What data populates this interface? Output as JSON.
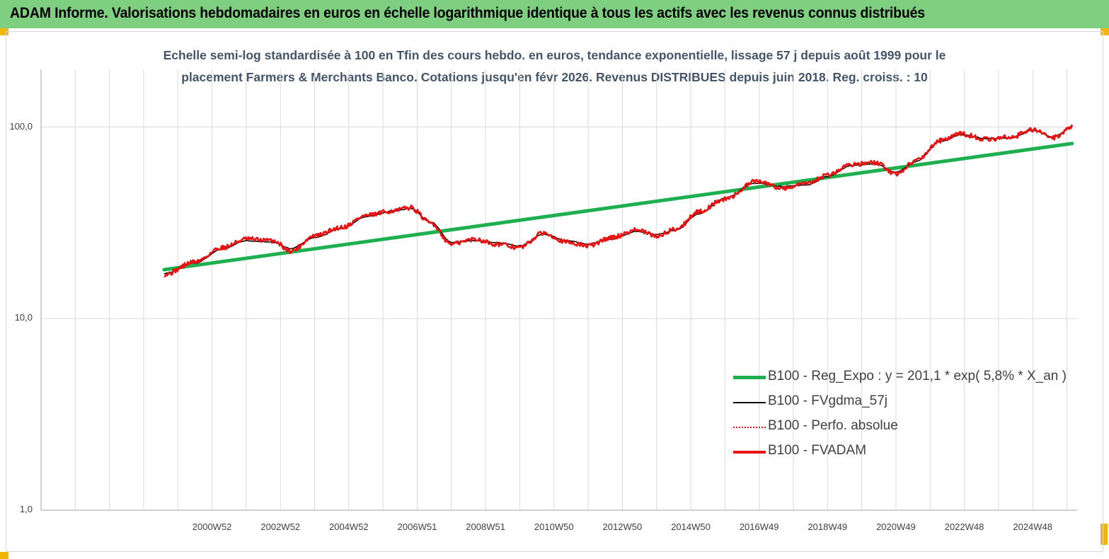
{
  "header": {
    "title": "ADAM Informe. Valorisations hebdomadaires en euros en échelle logarithmique identique à tous les actifs avec les revenus connus distribués",
    "bg_color": "#7fcf80"
  },
  "chart_data": {
    "type": "line",
    "title_line1": "Echelle semi-log standardisée à 100 en Tfin des cours hebdo. en euros, tendance exponentielle, lissage 57 j depuis août 1999 pour le",
    "title_line2": "placement Farmers & Merchants Banco. Cotations jusqu'en févr 2026. Revenus DISTRIBUES depuis juin 2018. Reg. croiss. : 10",
    "y_scale": "log",
    "ylim": [
      1,
      200
    ],
    "y_ticks": [
      "1,0",
      "10,0",
      "100,0"
    ],
    "x_ticks": [
      "2000W52",
      "2002W52",
      "2004W52",
      "2006W51",
      "2008W51",
      "2010W50",
      "2012W50",
      "2014W50",
      "2016W49",
      "2018W49",
      "2020W49",
      "2022W48",
      "2024W48"
    ],
    "x_tick_years": [
      2001.0,
      2003.0,
      2005.0,
      2007.0,
      2009.0,
      2011.0,
      2013.0,
      2015.0,
      2017.0,
      2019.0,
      2021.0,
      2023.0,
      2025.0
    ],
    "xlim": [
      1996.0,
      2026.3
    ],
    "legend_position": "right",
    "grid": "vertical",
    "series": [
      {
        "name": "B100 - Reg_Expo : y = 201,1 * exp( 5,8% *  X_an )",
        "color": "#1eb050",
        "style": "solid",
        "x": [
          1999.6,
          2026.15
        ],
        "y": [
          18.0,
          82.0
        ]
      },
      {
        "name": "B100 - FVgdma_57j",
        "color": "#000000",
        "style": "solid",
        "x": [
          1999.6,
          2000.5,
          2001.3,
          2002.0,
          2002.8,
          2003.3,
          2004.0,
          2004.8,
          2005.5,
          2006.3,
          2006.8,
          2007.4,
          2008.0,
          2008.7,
          2009.3,
          2010.0,
          2010.7,
          2011.4,
          2012.0,
          2012.7,
          2013.4,
          2014.0,
          2014.6,
          2015.2,
          2016.0,
          2016.9,
          2017.7,
          2018.4,
          2019.0,
          2019.7,
          2020.4,
          2021.0,
          2021.6,
          2022.3,
          2022.9,
          2023.7,
          2024.4,
          2025.0,
          2025.6,
          2026.15
        ],
        "y": [
          17.2,
          19.5,
          23.0,
          25.5,
          25.0,
          23.2,
          26.5,
          29.5,
          34.0,
          36.5,
          37.5,
          32.0,
          25.0,
          25.5,
          25.0,
          24.0,
          27.5,
          25.5,
          24.5,
          26.0,
          28.5,
          27.5,
          29.0,
          35.0,
          42.5,
          51.0,
          49.0,
          50.0,
          55.0,
          63.0,
          64.0,
          58.0,
          66.0,
          84.0,
          91.0,
          87.0,
          88.0,
          96.0,
          89.0,
          99.0
        ]
      },
      {
        "name": "B100 - Perfo. absolue",
        "color": "#e01010",
        "style": "dotted",
        "x": [
          1999.6,
          2000.5,
          2001.3,
          2002.0,
          2002.8,
          2003.3,
          2004.0,
          2004.8,
          2005.5,
          2006.3,
          2006.8,
          2007.4,
          2008.0,
          2008.7,
          2009.3,
          2010.0,
          2010.7,
          2011.4,
          2012.0,
          2012.7,
          2013.4,
          2014.0,
          2014.6,
          2015.2,
          2016.0,
          2016.9,
          2017.7,
          2018.4,
          2019.0,
          2019.7,
          2020.4,
          2021.0,
          2021.6,
          2022.3,
          2022.9,
          2023.7,
          2024.4,
          2025.0,
          2025.6,
          2026.15
        ],
        "y": [
          17.0,
          19.8,
          23.5,
          26.0,
          25.5,
          22.5,
          27.0,
          30.0,
          34.5,
          36.5,
          38.0,
          31.5,
          24.5,
          26.0,
          24.5,
          23.5,
          28.0,
          25.0,
          24.0,
          26.5,
          29.0,
          27.0,
          29.5,
          36.0,
          42.0,
          52.0,
          48.0,
          50.5,
          56.0,
          64.0,
          65.0,
          57.0,
          67.0,
          85.0,
          92.0,
          86.0,
          89.0,
          97.0,
          88.0,
          100.0
        ]
      },
      {
        "name": "B100 - FVADAM",
        "color": "#ee1111",
        "style": "solid",
        "x": [
          1999.6,
          2000.5,
          2001.3,
          2002.0,
          2002.8,
          2003.3,
          2004.0,
          2004.8,
          2005.5,
          2006.3,
          2006.8,
          2007.4,
          2008.0,
          2008.7,
          2009.3,
          2010.0,
          2010.7,
          2011.4,
          2012.0,
          2012.7,
          2013.4,
          2014.0,
          2014.6,
          2015.2,
          2016.0,
          2016.9,
          2017.7,
          2018.4,
          2019.0,
          2019.7,
          2020.4,
          2021.0,
          2021.6,
          2022.3,
          2022.9,
          2023.7,
          2024.4,
          2025.0,
          2025.6,
          2026.15
        ],
        "y": [
          17.0,
          19.8,
          23.5,
          26.0,
          25.5,
          22.5,
          27.0,
          30.0,
          34.5,
          36.5,
          38.0,
          31.5,
          24.5,
          26.0,
          24.5,
          23.5,
          28.0,
          25.0,
          24.0,
          26.5,
          29.0,
          27.0,
          29.5,
          36.0,
          42.0,
          52.0,
          48.0,
          50.5,
          56.0,
          64.0,
          65.0,
          57.0,
          67.0,
          85.0,
          92.0,
          86.0,
          89.0,
          97.0,
          88.0,
          100.0
        ]
      }
    ]
  }
}
